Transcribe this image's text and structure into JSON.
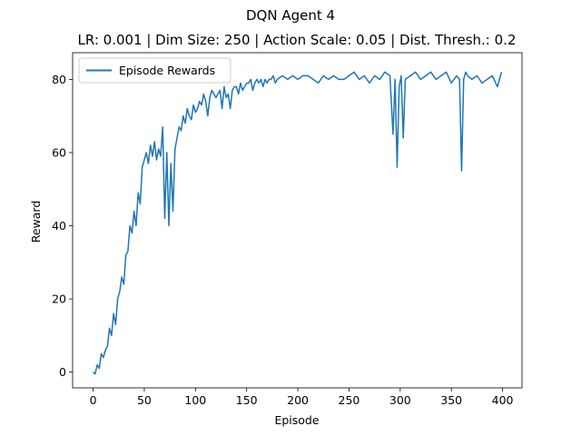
{
  "suptitle": "DQN Agent 4",
  "chart_data": {
    "type": "line",
    "title": "LR: 0.001 | Dim Size: 250 | Action Scale: 0.05 | Dist. Thresh.: 0.2",
    "xlabel": "Episode",
    "ylabel": "Reward",
    "xlim": [
      -20,
      419
    ],
    "ylim": [
      -4.3,
      87.3
    ],
    "xticks": [
      0,
      50,
      100,
      150,
      200,
      250,
      300,
      350,
      400
    ],
    "yticks": [
      0,
      20,
      40,
      60,
      80
    ],
    "legend": "upper left",
    "grid": false,
    "series": [
      {
        "name": "Episode Rewards",
        "color": "#1f77b4",
        "x": [
          0,
          2,
          4,
          6,
          8,
          10,
          12,
          14,
          16,
          18,
          20,
          22,
          24,
          26,
          28,
          30,
          32,
          34,
          36,
          38,
          40,
          42,
          44,
          46,
          48,
          50,
          52,
          54,
          56,
          58,
          60,
          62,
          64,
          66,
          68,
          70,
          72,
          74,
          76,
          78,
          80,
          82,
          84,
          86,
          88,
          90,
          92,
          94,
          96,
          98,
          100,
          102,
          104,
          106,
          108,
          110,
          112,
          114,
          116,
          118,
          120,
          122,
          124,
          126,
          128,
          130,
          132,
          134,
          136,
          138,
          140,
          142,
          144,
          146,
          148,
          150,
          152,
          154,
          156,
          158,
          160,
          162,
          164,
          166,
          168,
          170,
          172,
          174,
          176,
          178,
          180,
          185,
          190,
          195,
          200,
          205,
          210,
          215,
          220,
          225,
          230,
          235,
          240,
          245,
          250,
          255,
          260,
          265,
          270,
          275,
          280,
          285,
          290,
          293,
          295,
          297,
          299,
          301,
          303,
          305,
          310,
          315,
          320,
          325,
          330,
          335,
          340,
          345,
          350,
          355,
          358,
          360,
          362,
          364,
          366,
          370,
          375,
          380,
          385,
          390,
          395,
          399
        ],
        "values": [
          0,
          -0.5,
          2,
          1,
          5,
          4,
          6,
          7,
          12,
          10,
          16,
          13,
          20,
          22,
          26,
          24,
          32,
          33,
          40,
          38,
          44,
          40,
          49,
          46,
          56,
          58,
          60,
          57,
          62,
          59,
          63,
          58,
          61,
          59,
          67,
          42,
          60,
          40,
          57,
          44,
          61,
          64,
          67,
          66,
          70,
          68,
          72,
          70,
          69,
          73,
          71,
          72,
          74,
          73,
          76,
          74,
          70,
          75,
          77,
          76,
          75,
          76,
          77,
          72,
          78,
          75,
          76,
          72,
          77,
          78,
          78,
          76,
          79,
          77,
          78,
          79,
          79,
          80,
          77,
          79,
          80,
          79,
          80,
          78,
          80,
          79,
          80,
          80,
          81,
          79,
          80,
          81,
          80,
          81,
          80,
          81,
          81,
          80,
          79,
          81,
          80,
          81,
          80,
          80,
          81,
          82,
          80,
          81,
          79,
          81,
          80,
          82,
          81,
          65,
          80,
          56,
          78,
          81,
          64,
          80,
          81,
          82,
          80,
          81,
          82,
          80,
          81,
          82,
          79,
          81,
          80,
          55,
          80,
          82,
          81,
          80,
          81,
          79,
          80,
          81,
          78,
          82
        ]
      }
    ]
  }
}
